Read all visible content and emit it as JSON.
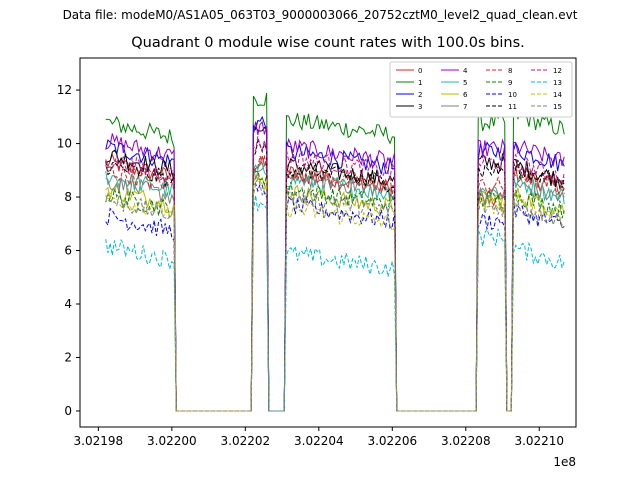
{
  "figure": {
    "suptitle": "Data file: modeM0/AS1A05_063T03_9000003066_20752cztM0_level2_quad_clean.evt"
  },
  "chart_data": {
    "type": "line",
    "title": "Quadrant 0 module wise count rates with 100.0s bins.",
    "xlabel": "",
    "ylabel": "",
    "x_offset_label": "1e8",
    "xlim": [
      3.021975,
      3.02211
    ],
    "ylim": [
      -0.6,
      13.2
    ],
    "xticks": [
      3.02198,
      3.022,
      3.02202,
      3.02204,
      3.02206,
      3.02208,
      3.0221
    ],
    "xtick_labels": [
      "3.02198",
      "3.02200",
      "3.02202",
      "3.02204",
      "3.02206",
      "3.02208",
      "3.02210"
    ],
    "yticks": [
      0,
      2,
      4,
      6,
      8,
      10,
      12
    ],
    "ytick_labels": [
      "0",
      "2",
      "4",
      "6",
      "8",
      "10",
      "12"
    ],
    "legend_position": "top-right",
    "gaps": [
      [
        3.022001,
        3.022022
      ],
      [
        3.022026,
        3.022031
      ],
      [
        3.022061,
        3.022083
      ],
      [
        3.022091,
        3.022093
      ]
    ],
    "segments": [
      [
        3.021982,
        3.022001
      ],
      [
        3.022022,
        3.022026
      ],
      [
        3.022031,
        3.022061
      ],
      [
        3.022083,
        3.022091
      ],
      [
        3.022093,
        3.022107
      ]
    ],
    "series": [
      {
        "name": "0",
        "color": "#d62728",
        "dash": "",
        "levels": [
          9.0,
          9.2,
          8.6,
          7.9,
          8.6
        ]
      },
      {
        "name": "1",
        "color": "#008000",
        "dash": "",
        "levels": [
          10.5,
          11.7,
          10.6,
          10.8,
          10.8
        ]
      },
      {
        "name": "2",
        "color": "#0000ff",
        "dash": "",
        "levels": [
          9.6,
          10.8,
          9.4,
          9.7,
          9.5
        ]
      },
      {
        "name": "3",
        "color": "#000000",
        "dash": "",
        "levels": [
          9.3,
          10.5,
          8.9,
          9.3,
          8.9
        ]
      },
      {
        "name": "4",
        "color": "#9400d3",
        "dash": "",
        "levels": [
          9.8,
          10.6,
          9.6,
          9.8,
          9.6
        ]
      },
      {
        "name": "5",
        "color": "#1abc9c",
        "dash": "",
        "levels": [
          8.5,
          9.0,
          8.4,
          8.2,
          8.3
        ]
      },
      {
        "name": "6",
        "color": "#b8b800",
        "dash": "",
        "levels": [
          8.0,
          8.6,
          7.9,
          7.9,
          7.8
        ]
      },
      {
        "name": "7",
        "color": "#808080",
        "dash": "",
        "levels": [
          8.3,
          8.9,
          8.5,
          8.1,
          8.2
        ]
      },
      {
        "name": "8",
        "color": "#d62728",
        "dash": "4,2",
        "levels": [
          8.7,
          9.3,
          8.7,
          8.4,
          8.6
        ]
      },
      {
        "name": "9",
        "color": "#008000",
        "dash": "4,2",
        "levels": [
          7.8,
          8.8,
          8.0,
          7.9,
          7.8
        ]
      },
      {
        "name": "10",
        "color": "#0000ff",
        "dash": "4,2",
        "levels": [
          7.0,
          8.2,
          7.4,
          7.1,
          7.2
        ]
      },
      {
        "name": "11",
        "color": "#000000",
        "dash": "4,2",
        "levels": [
          8.9,
          9.8,
          8.8,
          9.0,
          8.8
        ]
      },
      {
        "name": "12",
        "color": "#c71585",
        "dash": "4,2",
        "levels": [
          9.1,
          10.0,
          9.2,
          9.3,
          9.0
        ]
      },
      {
        "name": "13",
        "color": "#00bcd4",
        "dash": "4,2",
        "levels": [
          5.9,
          7.8,
          5.6,
          6.5,
          5.8
        ]
      },
      {
        "name": "14",
        "color": "#c0c000",
        "dash": "4,2",
        "levels": [
          7.7,
          8.4,
          7.3,
          7.7,
          7.5
        ]
      },
      {
        "name": "15",
        "color": "#808080",
        "dash": "4,2",
        "levels": [
          7.6,
          8.4,
          7.8,
          7.6,
          7.4
        ]
      }
    ]
  }
}
